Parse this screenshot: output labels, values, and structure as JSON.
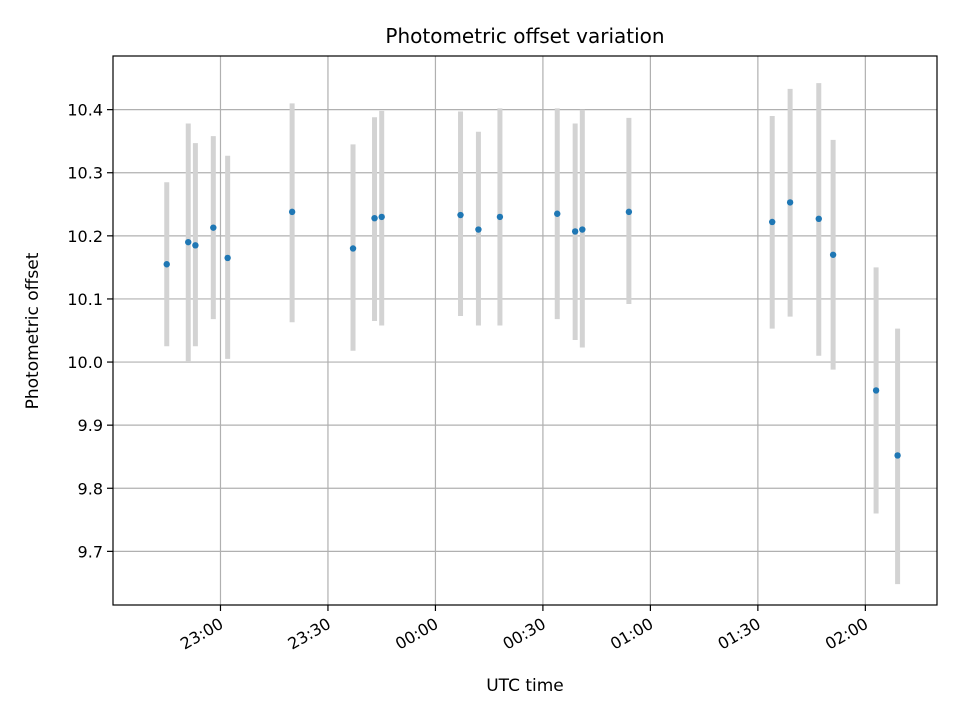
{
  "chart_data": {
    "type": "scatter",
    "title": "Photometric offset variation",
    "xlabel": "UTC time",
    "ylabel": "Photometric offset",
    "x_type": "time",
    "x_ticks": [
      "23:00",
      "23:30",
      "00:00",
      "00:30",
      "01:00",
      "01:30",
      "02:00"
    ],
    "xlim": [
      "22:30",
      "02:20"
    ],
    "ylim": [
      9.615,
      10.485
    ],
    "y_ticks": [
      9.7,
      9.8,
      9.9,
      10.0,
      10.1,
      10.2,
      10.3,
      10.4
    ],
    "y_tick_labels": [
      "9.7",
      "9.8",
      "9.9",
      "10.0",
      "10.1",
      "10.2",
      "10.3",
      "10.4"
    ],
    "grid": true,
    "colors": {
      "point": "#1f77b4",
      "errorbar": "#d3d3d3",
      "grid": "#b0b0b0"
    },
    "points": [
      {
        "t": "22:45",
        "y": 10.155,
        "lo": 10.025,
        "hi": 10.285
      },
      {
        "t": "22:51",
        "y": 10.19,
        "lo": 10.0,
        "hi": 10.378
      },
      {
        "t": "22:53",
        "y": 10.185,
        "lo": 10.025,
        "hi": 10.347
      },
      {
        "t": "22:58",
        "y": 10.213,
        "lo": 10.068,
        "hi": 10.358
      },
      {
        "t": "23:02",
        "y": 10.165,
        "lo": 10.005,
        "hi": 10.327
      },
      {
        "t": "23:20",
        "y": 10.238,
        "lo": 10.063,
        "hi": 10.41
      },
      {
        "t": "23:37",
        "y": 10.18,
        "lo": 10.018,
        "hi": 10.345
      },
      {
        "t": "23:43",
        "y": 10.228,
        "lo": 10.065,
        "hi": 10.388
      },
      {
        "t": "23:45",
        "y": 10.23,
        "lo": 10.058,
        "hi": 10.398
      },
      {
        "t": "00:07",
        "y": 10.233,
        "lo": 10.073,
        "hi": 10.397
      },
      {
        "t": "00:12",
        "y": 10.21,
        "lo": 10.058,
        "hi": 10.365
      },
      {
        "t": "00:18",
        "y": 10.23,
        "lo": 10.058,
        "hi": 10.402
      },
      {
        "t": "00:34",
        "y": 10.235,
        "lo": 10.068,
        "hi": 10.402
      },
      {
        "t": "00:39",
        "y": 10.207,
        "lo": 10.035,
        "hi": 10.378
      },
      {
        "t": "00:41",
        "y": 10.21,
        "lo": 10.023,
        "hi": 10.4
      },
      {
        "t": "00:54",
        "y": 10.238,
        "lo": 10.092,
        "hi": 10.387
      },
      {
        "t": "01:34",
        "y": 10.222,
        "lo": 10.053,
        "hi": 10.39
      },
      {
        "t": "01:39",
        "y": 10.253,
        "lo": 10.072,
        "hi": 10.433
      },
      {
        "t": "01:47",
        "y": 10.227,
        "lo": 10.01,
        "hi": 10.442
      },
      {
        "t": "01:51",
        "y": 10.17,
        "lo": 9.988,
        "hi": 10.352
      },
      {
        "t": "02:03",
        "y": 9.955,
        "lo": 9.76,
        "hi": 10.15
      },
      {
        "t": "02:09",
        "y": 9.852,
        "lo": 9.648,
        "hi": 10.053
      }
    ]
  }
}
